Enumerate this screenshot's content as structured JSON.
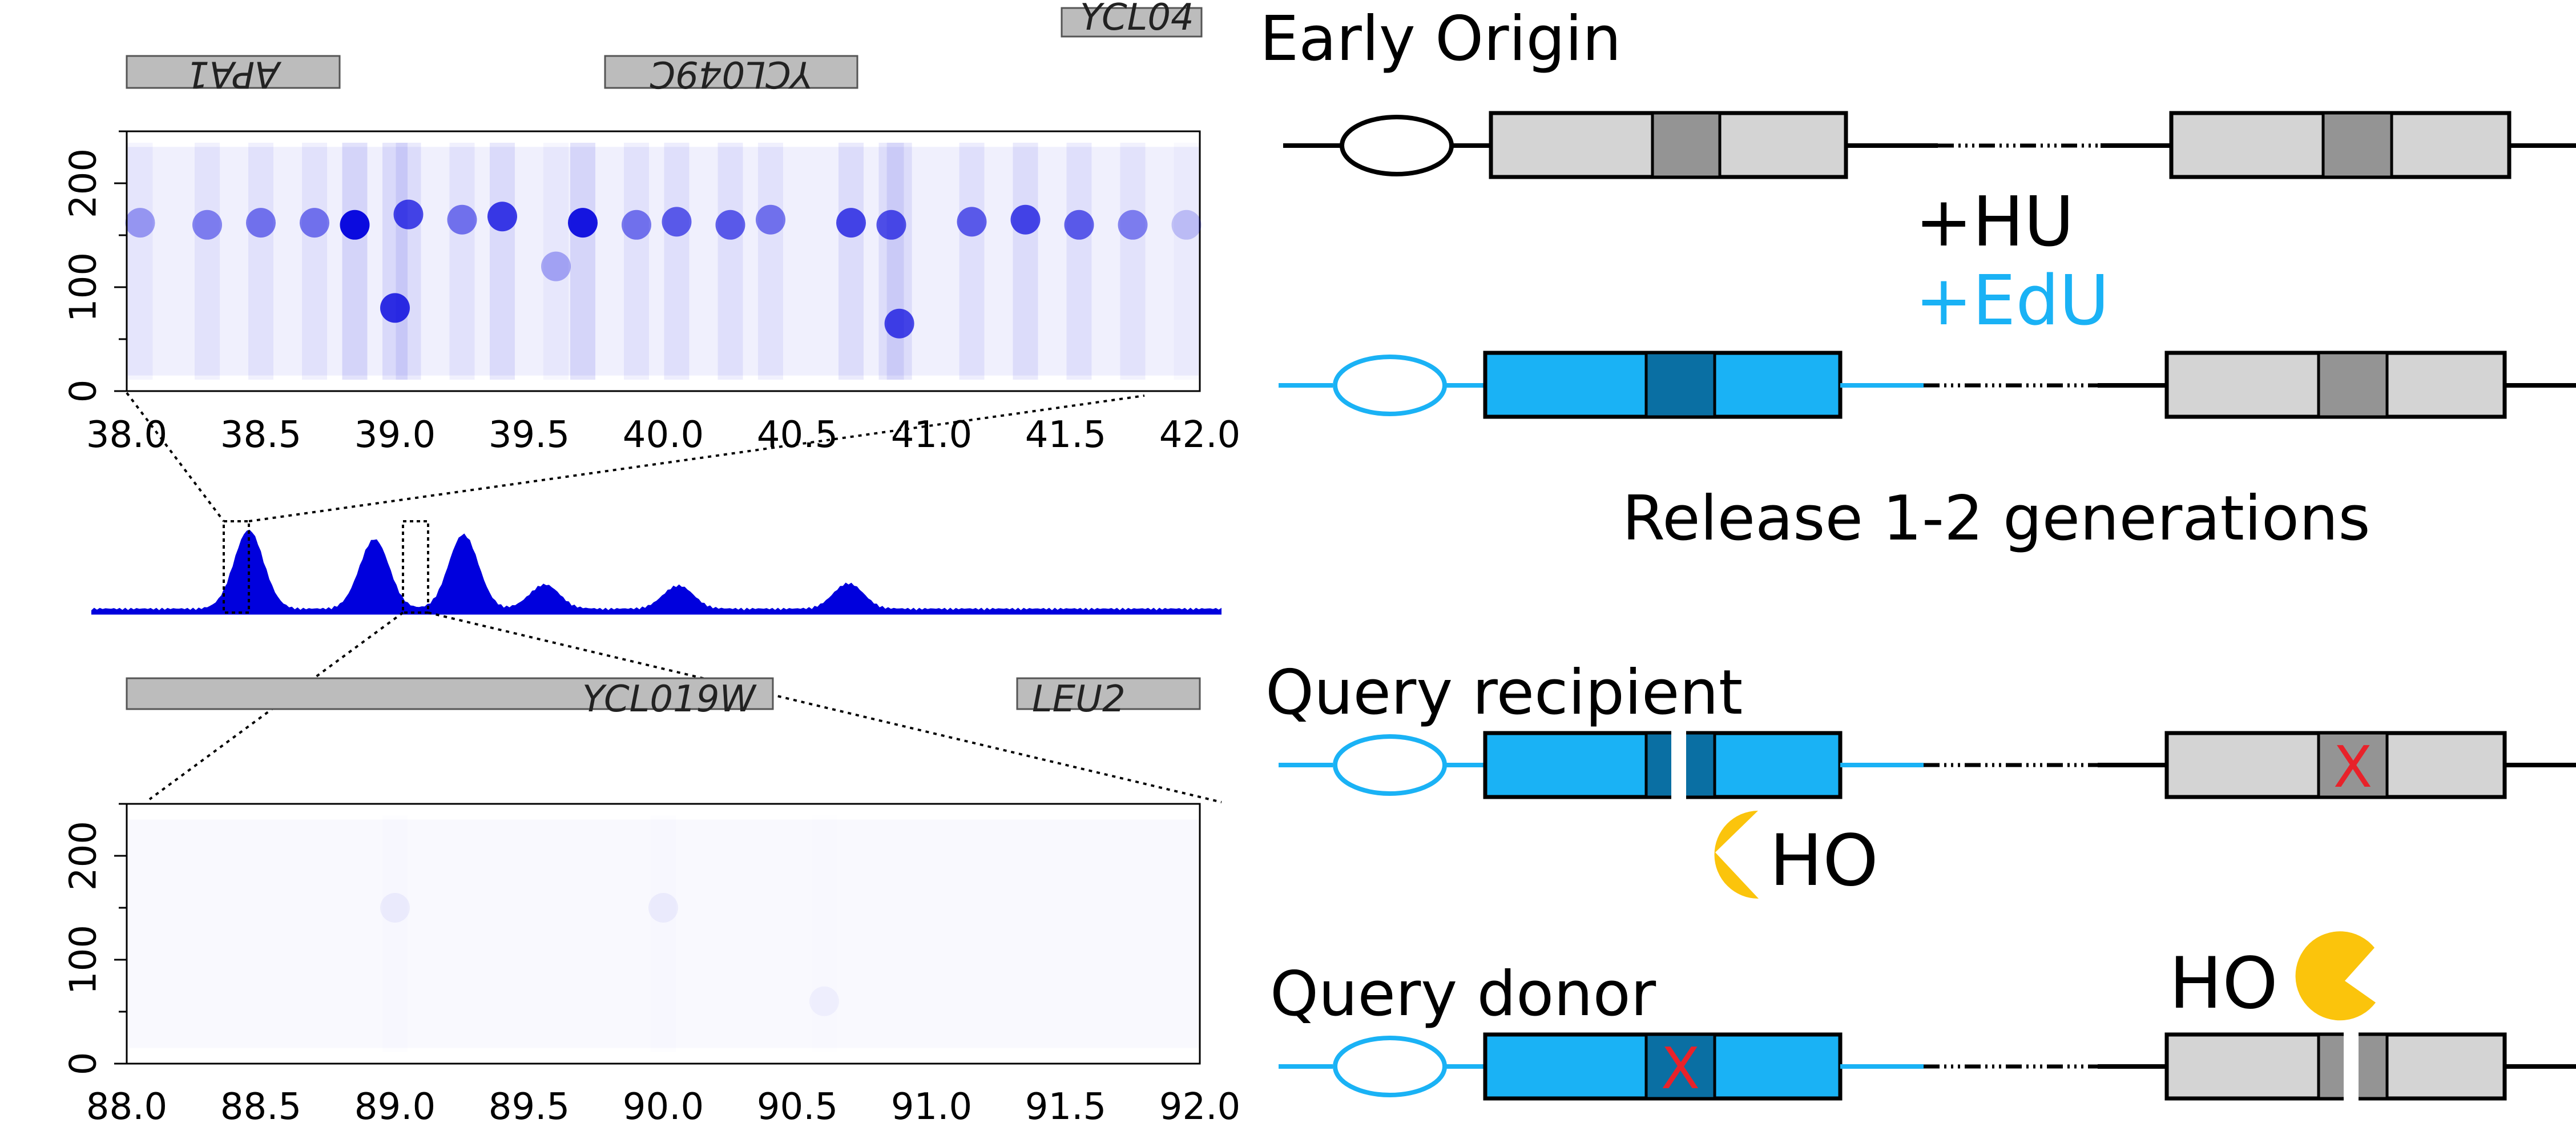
{
  "colors": {
    "heat": "#0000dd",
    "edu_blue": "#1ab2f5",
    "edu_dark": "#0a6fa3",
    "gene_fill": "#bcbcbc",
    "box_light": "#d4d4d4",
    "box_mid": "#949494",
    "x_red": "#e8222a",
    "ho_yellow": "#fbc40c"
  },
  "top_panel": {
    "genes": [
      "APA1",
      "YCL049C",
      "YCL04"
    ],
    "x_ticks": [
      "38.0",
      "38.5",
      "39.0",
      "39.5",
      "40.0",
      "40.5",
      "41.0",
      "41.5",
      "42.0"
    ],
    "y_ticks": [
      "0",
      "100",
      "200"
    ]
  },
  "bottom_panel": {
    "genes": [
      "YCL019W",
      "LEU2"
    ],
    "x_ticks": [
      "88.0",
      "88.5",
      "89.0",
      "89.5",
      "90.0",
      "90.5",
      "91.0",
      "91.5",
      "92.0"
    ],
    "y_ticks": [
      "0",
      "100",
      "200"
    ]
  },
  "chart_data": {
    "type": "heatmap",
    "panels": [
      {
        "name": "top",
        "x_range": [
          38.0,
          42.0
        ],
        "y_range": [
          0,
          250
        ],
        "bands": [
          {
            "x": 38.05,
            "y": 162,
            "intensity": 0.35
          },
          {
            "x": 38.3,
            "y": 160,
            "intensity": 0.45
          },
          {
            "x": 38.5,
            "y": 162,
            "intensity": 0.5
          },
          {
            "x": 38.7,
            "y": 162,
            "intensity": 0.5
          },
          {
            "x": 38.85,
            "y": 160,
            "intensity": 0.95
          },
          {
            "x": 39.0,
            "y": 80,
            "intensity": 0.8
          },
          {
            "x": 39.05,
            "y": 170,
            "intensity": 0.7
          },
          {
            "x": 39.25,
            "y": 165,
            "intensity": 0.5
          },
          {
            "x": 39.4,
            "y": 168,
            "intensity": 0.75
          },
          {
            "x": 39.6,
            "y": 120,
            "intensity": 0.3
          },
          {
            "x": 39.7,
            "y": 162,
            "intensity": 0.9
          },
          {
            "x": 39.9,
            "y": 160,
            "intensity": 0.5
          },
          {
            "x": 40.05,
            "y": 163,
            "intensity": 0.6
          },
          {
            "x": 40.25,
            "y": 160,
            "intensity": 0.6
          },
          {
            "x": 40.4,
            "y": 165,
            "intensity": 0.5
          },
          {
            "x": 40.7,
            "y": 162,
            "intensity": 0.7
          },
          {
            "x": 40.85,
            "y": 160,
            "intensity": 0.65
          },
          {
            "x": 40.88,
            "y": 65,
            "intensity": 0.7
          },
          {
            "x": 41.15,
            "y": 163,
            "intensity": 0.6
          },
          {
            "x": 41.35,
            "y": 165,
            "intensity": 0.7
          },
          {
            "x": 41.55,
            "y": 160,
            "intensity": 0.6
          },
          {
            "x": 41.75,
            "y": 160,
            "intensity": 0.45
          },
          {
            "x": 41.95,
            "y": 160,
            "intensity": 0.2
          }
        ]
      },
      {
        "name": "bottom",
        "x_range": [
          88.0,
          92.0
        ],
        "y_range": [
          0,
          250
        ],
        "bands": [
          {
            "x": 89.0,
            "y": 150,
            "intensity": 0.05
          },
          {
            "x": 90.0,
            "y": 150,
            "intensity": 0.05
          },
          {
            "x": 90.6,
            "y": 60,
            "intensity": 0.04
          }
        ]
      }
    ],
    "overview_peaks": [
      {
        "x": 0.14,
        "h": 1.0
      },
      {
        "x": 0.25,
        "h": 0.85
      },
      {
        "x": 0.33,
        "h": 0.95
      },
      {
        "x": 0.4,
        "h": 0.35
      },
      {
        "x": 0.52,
        "h": 0.3
      },
      {
        "x": 0.67,
        "h": 0.3
      }
    ]
  },
  "schematic": {
    "early_origin": "Early Origin",
    "hu": "+HU",
    "edu": "+EdU",
    "release": "Release  1-2 generations",
    "query_recipient": "Query recipient",
    "query_donor": "Query donor",
    "ho": "HO",
    "x_mark": "X"
  }
}
